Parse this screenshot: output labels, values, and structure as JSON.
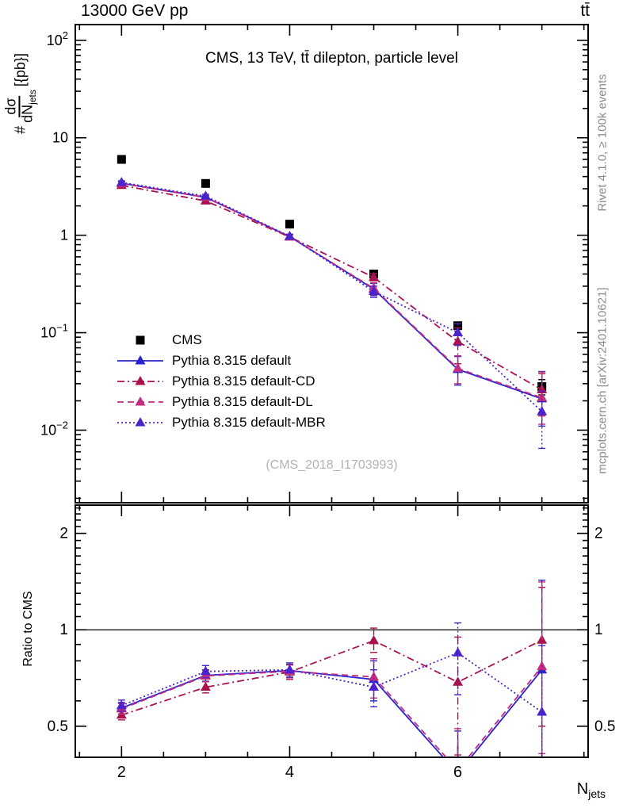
{
  "header": {
    "beam": "13000 GeV pp",
    "process": "tt̄"
  },
  "panel_title": "CMS, 13 TeV, tt̄ dilepton, particle level",
  "watermark": "(CMS_2018_I1703993)",
  "side_notes": {
    "top": "Rivet 4.1.0, ≥ 100k events",
    "bottom": "mcplots.cern.ch [arXiv:2401.10621]"
  },
  "ylabel": {
    "prefix": "#",
    "numerator": "dσ",
    "denominator": "dN",
    "denominator_sub": "jets",
    "units": "[{pb}]"
  },
  "ratio_label": "Ratio to CMS",
  "xlabel": {
    "main": "N",
    "sub": "jets"
  },
  "legend": {
    "items": [
      {
        "label": "CMS"
      },
      {
        "label": "Pythia 8.315 default"
      },
      {
        "label": "Pythia 8.315 default-CD"
      },
      {
        "label": "Pythia 8.315 default-DL"
      },
      {
        "label": "Pythia 8.315 default-MBR"
      }
    ]
  },
  "chart_data": {
    "type": "line",
    "x": [
      2,
      3,
      4,
      5,
      6,
      7
    ],
    "xlim": [
      1.45,
      7.55
    ],
    "main_ylim": [
      0.0018,
      145
    ],
    "ratio_ylim": [
      0.4,
      2.45
    ],
    "x_major_ticks": [
      2,
      4,
      6
    ],
    "x_minor_step": 0.5,
    "main_yticks": [
      {
        "v": 100,
        "base": "10",
        "exp": "2"
      },
      {
        "v": 10,
        "base": "10",
        "exp": ""
      },
      {
        "v": 1,
        "base": "1",
        "exp": ""
      },
      {
        "v": 0.1,
        "base": "10",
        "exp": "−1"
      },
      {
        "v": 0.01,
        "base": "10",
        "exp": "−2"
      }
    ],
    "ratio_yticks": [
      {
        "v": 2,
        "label": "2"
      },
      {
        "v": 1,
        "label": "1"
      },
      {
        "v": 0.5,
        "label": "0.5"
      }
    ],
    "ratio_reference": 1,
    "series": [
      {
        "name": "CMS",
        "role": "reference",
        "marker": "square",
        "line": "none",
        "color": "#000000",
        "values": [
          6.0,
          3.4,
          1.3,
          0.4,
          0.118,
          0.028
        ],
        "err_lo": [
          0.12,
          0.08,
          0.04,
          0.02,
          0.008,
          0.005
        ],
        "err_hi": [
          0.12,
          0.08,
          0.04,
          0.02,
          0.008,
          0.005
        ]
      },
      {
        "name": "Pythia 8.315 default",
        "marker": "triangle",
        "line": "solid",
        "color": "#2a22cf",
        "values": [
          3.42,
          2.45,
          0.97,
          0.28,
          0.042,
          0.021
        ],
        "err_lo": [
          0.14,
          0.1,
          0.045,
          0.04,
          0.013,
          0.01
        ],
        "err_hi": [
          0.14,
          0.1,
          0.045,
          0.04,
          0.015,
          0.019
        ]
      },
      {
        "name": "Pythia 8.315 default-CD",
        "marker": "triangle",
        "line": "dashdot",
        "color": "#a8114e",
        "values": [
          3.25,
          2.25,
          0.96,
          0.37,
          0.081,
          0.026
        ],
        "err_lo": [
          0.11,
          0.09,
          0.05,
          0.03,
          0.033,
          0.012
        ],
        "err_hi": [
          0.11,
          0.09,
          0.05,
          0.035,
          0.031,
          0.012
        ]
      },
      {
        "name": "Pythia 8.315 default-DL",
        "marker": "triangle",
        "line": "dashed",
        "color": "#c32c7f",
        "values": [
          3.4,
          2.44,
          0.965,
          0.285,
          0.043,
          0.0215
        ],
        "err_lo": [
          0.13,
          0.1,
          0.045,
          0.04,
          0.013,
          0.01
        ],
        "err_hi": [
          0.13,
          0.1,
          0.045,
          0.04,
          0.015,
          0.018
        ]
      },
      {
        "name": "Pythia 8.315 default-MBR",
        "marker": "triangle",
        "line": "dotted",
        "color": "#4a23cc",
        "values": [
          3.48,
          2.52,
          0.975,
          0.265,
          0.1,
          0.0155
        ],
        "err_lo": [
          0.14,
          0.11,
          0.05,
          0.035,
          0.026,
          0.009
        ],
        "err_hi": [
          0.14,
          0.11,
          0.05,
          0.035,
          0.024,
          0.0095
        ]
      }
    ]
  }
}
